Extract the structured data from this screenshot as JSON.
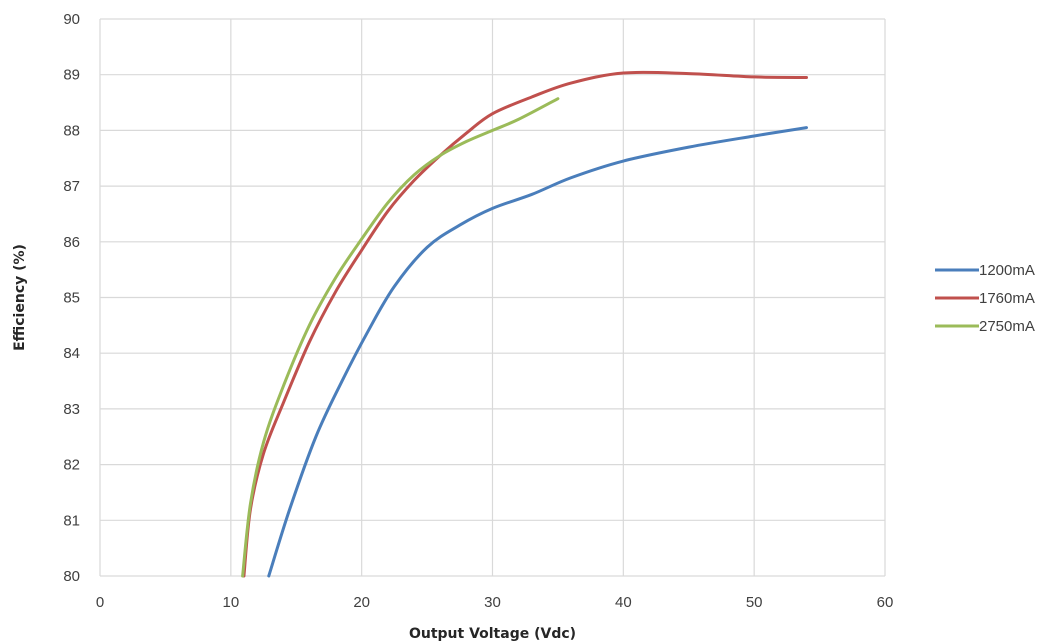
{
  "chart_data": {
    "type": "line",
    "title": "",
    "xlabel": "Output Voltage (Vdc)",
    "ylabel": "Efficiency (%)",
    "xlim": [
      0,
      60
    ],
    "ylim": [
      80,
      90
    ],
    "x_ticks": [
      0,
      10,
      20,
      30,
      40,
      50,
      60
    ],
    "y_ticks": [
      80,
      81,
      82,
      83,
      84,
      85,
      86,
      87,
      88,
      89,
      90
    ],
    "grid": true,
    "legend_position": "right",
    "series": [
      {
        "name": "1200mA",
        "color": "#4a7ebb",
        "points": [
          [
            12.9,
            80.0
          ],
          [
            14.5,
            81.2
          ],
          [
            16.5,
            82.5
          ],
          [
            18.5,
            83.5
          ],
          [
            20.5,
            84.4
          ],
          [
            22.5,
            85.2
          ],
          [
            25,
            85.9
          ],
          [
            27.5,
            86.3
          ],
          [
            30,
            86.6
          ],
          [
            33,
            86.85
          ],
          [
            36,
            87.15
          ],
          [
            40,
            87.45
          ],
          [
            45,
            87.7
          ],
          [
            50,
            87.9
          ],
          [
            54,
            88.05
          ]
        ]
      },
      {
        "name": "1760mA",
        "color": "#c0504d",
        "points": [
          [
            11.0,
            80.0
          ],
          [
            11.5,
            81.2
          ],
          [
            12.5,
            82.2
          ],
          [
            14,
            83.1
          ],
          [
            16,
            84.2
          ],
          [
            18,
            85.1
          ],
          [
            20,
            85.85
          ],
          [
            22,
            86.55
          ],
          [
            24,
            87.1
          ],
          [
            26,
            87.55
          ],
          [
            28,
            87.95
          ],
          [
            30,
            88.3
          ],
          [
            33,
            88.6
          ],
          [
            36,
            88.85
          ],
          [
            40,
            89.03
          ],
          [
            45,
            89.02
          ],
          [
            50,
            88.96
          ],
          [
            54,
            88.95
          ]
        ]
      },
      {
        "name": "2750mA",
        "color": "#9bbb59",
        "points": [
          [
            10.9,
            80.0
          ],
          [
            11.5,
            81.3
          ],
          [
            12.5,
            82.4
          ],
          [
            14,
            83.4
          ],
          [
            16,
            84.5
          ],
          [
            18,
            85.35
          ],
          [
            20,
            86.05
          ],
          [
            22,
            86.7
          ],
          [
            24,
            87.2
          ],
          [
            26,
            87.55
          ],
          [
            28,
            87.8
          ],
          [
            30,
            88.0
          ],
          [
            32,
            88.2
          ],
          [
            35,
            88.57
          ]
        ]
      }
    ]
  }
}
